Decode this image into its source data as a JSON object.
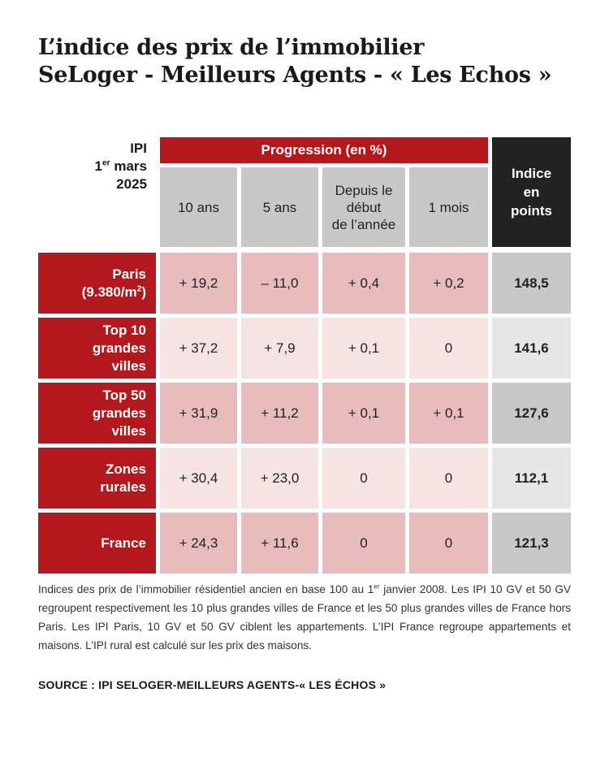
{
  "title": {
    "line1": "L’indice des prix de l’immobilier",
    "line2": "SeLoger - Meilleurs Agents - « Les Echos »"
  },
  "ipi_label": {
    "line1": "IPI",
    "date_prefix": "1",
    "date_sup": "er",
    "date_suffix": " mars",
    "line3": "2025"
  },
  "progression_header": "Progression (en %)",
  "columns": {
    "c10": "10 ans",
    "c5": "5 ans",
    "ytd_line1": "Depuis le",
    "ytd_line2": "début",
    "ytd_line3": "de l’année",
    "c1m": "1 mois"
  },
  "indice_header": {
    "line1": "Indice",
    "line2": "en",
    "line3": "points"
  },
  "rows": [
    {
      "label1": "Paris",
      "label2": "(9.380/m",
      "label2_sup": "2",
      "label2_end": ")",
      "label3": "",
      "y10": "+ 19,2",
      "y5": "– 11,0",
      "ytd": "+ 0,4",
      "m1": "+ 0,2",
      "index": "148,5"
    },
    {
      "label1": "Top 10",
      "label2": "grandes",
      "label2_sup": "",
      "label2_end": "",
      "label3": "villes",
      "y10": "+ 37,2",
      "y5": "+ 7,9",
      "ytd": "+ 0,1",
      "m1": "0",
      "index": "141,6"
    },
    {
      "label1": "Top 50",
      "label2": "grandes",
      "label2_sup": "",
      "label2_end": "",
      "label3": "villes",
      "y10": "+ 31,9",
      "y5": "+ 11,2",
      "ytd": "+ 0,1",
      "m1": "+ 0,1",
      "index": "127,6"
    },
    {
      "label1": "Zones",
      "label2": "rurales",
      "label2_sup": "",
      "label2_end": "",
      "label3": "",
      "y10": "+ 30,4",
      "y5": "+ 23,0",
      "ytd": "0",
      "m1": "0",
      "index": "112,1"
    },
    {
      "label1": "France",
      "label2": "",
      "label2_sup": "",
      "label2_end": "",
      "label3": "",
      "y10": "+ 24,3",
      "y5": "+ 11,6",
      "ytd": "0",
      "m1": "0",
      "index": "121,3"
    }
  ],
  "note": {
    "part1": "Indices des prix de l’immobilier résidentiel ancien en base 100 au 1",
    "sup": "er",
    "part2": " janvier 2008. Les IPI 10 GV et 50 GV regroupent respectivement les 10 plus grandes villes de France et les 50 plus grandes villes de France hors Paris. Les IPI Paris, 10 GV et 50 GV ciblent les appartements. L’IPI France regroupe appartements et maisons. L’IPI rural est calculé sur les prix des maisons."
  },
  "source": "SOURCE : IPI SELOGER-MEILLEURS AGENTS-« LES ÉCHOS »",
  "colors": {
    "accent_red": "#b3181e",
    "dark_header": "#222222",
    "cell_pink_dark": "#e8bcbd",
    "cell_pink_light": "#f6e4e4",
    "index_grey_dark": "#c8c8c8",
    "index_grey_light": "#e6e6e6"
  },
  "chart_data": {
    "type": "table",
    "title": "L’indice des prix de l’immobilier SeLoger - Meilleurs Agents - « Les Echos »",
    "columns": [
      "10 ans",
      "5 ans",
      "Depuis le début de l’année",
      "1 mois",
      "Indice en points"
    ],
    "rows": [
      {
        "name": "Paris (9.380/m2)",
        "values": [
          19.2,
          -11.0,
          0.4,
          0.2,
          148.5
        ]
      },
      {
        "name": "Top 10 grandes villes",
        "values": [
          37.2,
          7.9,
          0.1,
          0,
          141.6
        ]
      },
      {
        "name": "Top 50 grandes villes",
        "values": [
          31.9,
          11.2,
          0.1,
          0.1,
          127.6
        ]
      },
      {
        "name": "Zones rurales",
        "values": [
          30.4,
          23.0,
          0,
          0,
          112.1
        ]
      },
      {
        "name": "France",
        "values": [
          24.3,
          11.6,
          0,
          0,
          121.3
        ]
      }
    ]
  }
}
